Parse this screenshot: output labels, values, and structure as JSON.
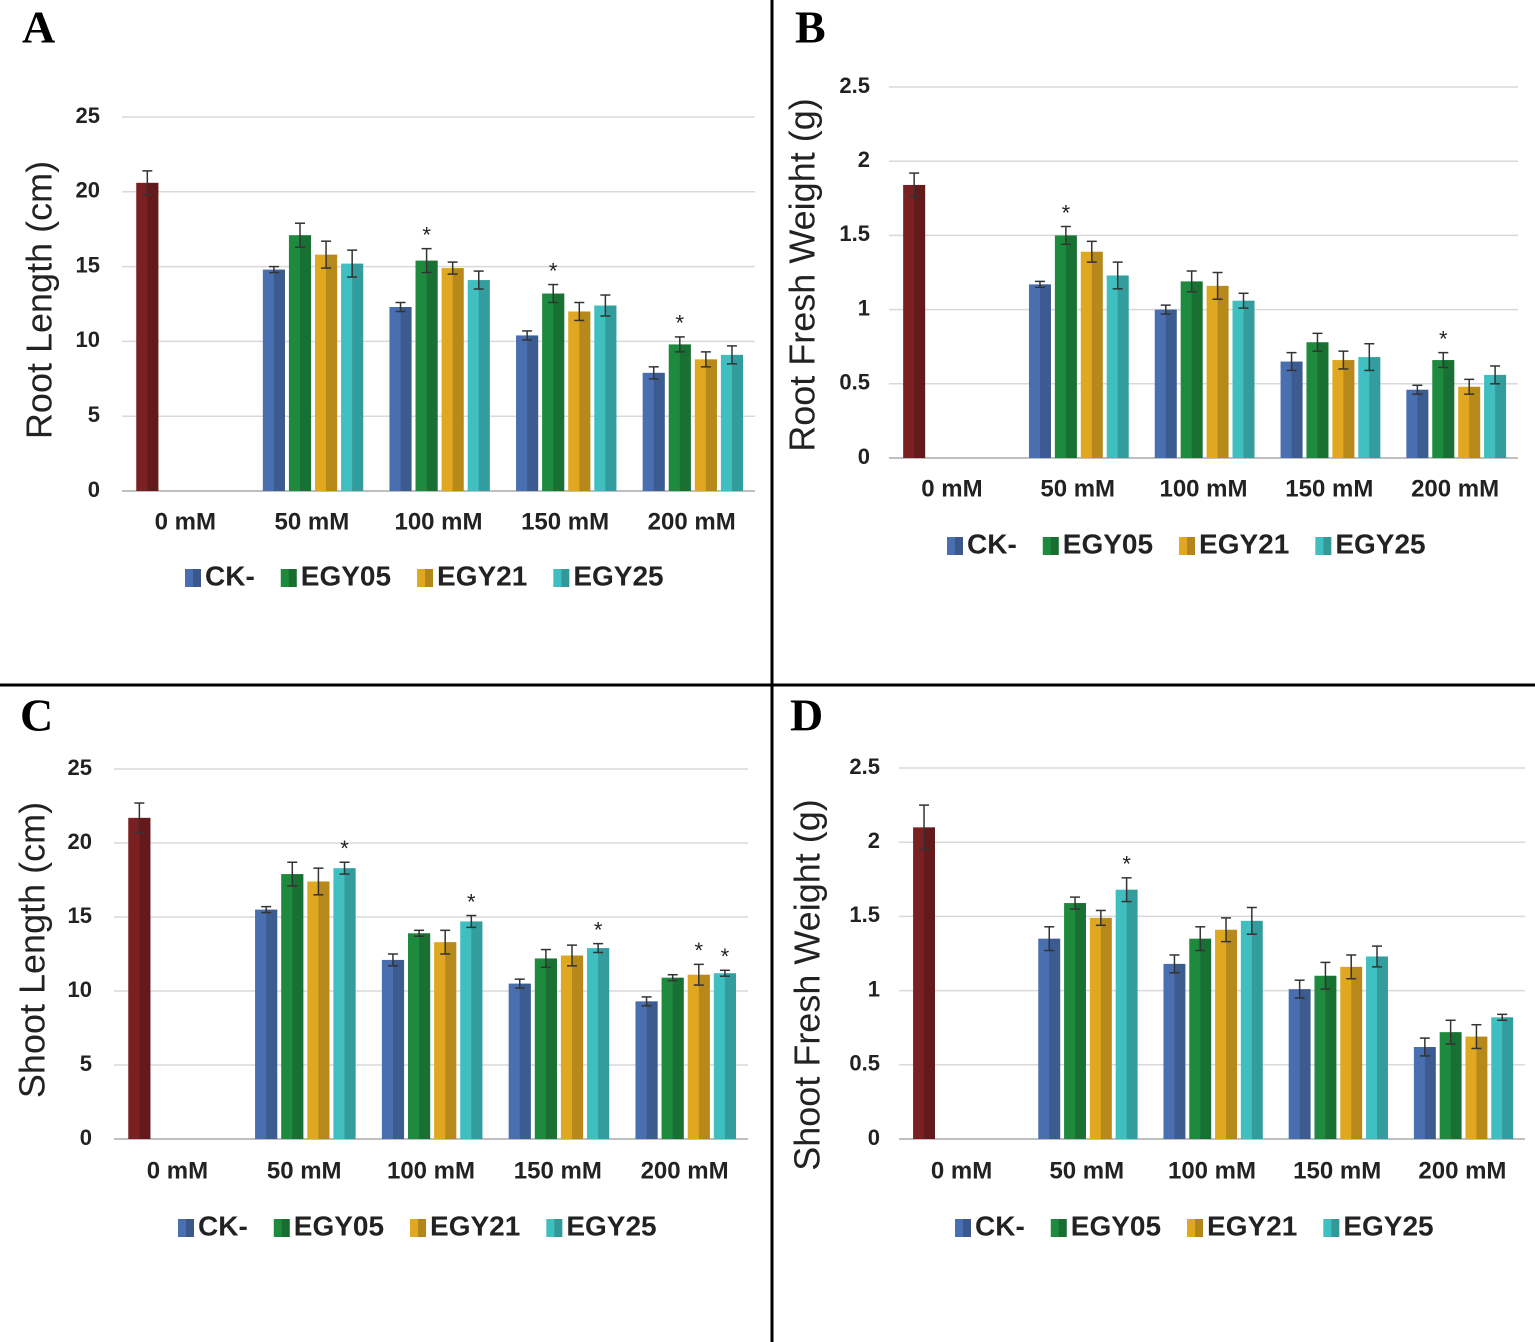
{
  "chart_data": [
    {
      "type": "bar",
      "title": "A",
      "y_label": "Root Length (cm)",
      "categories": [
        "0 mM",
        "50 mM",
        "100 mM",
        "150 mM",
        "200 mM"
      ],
      "ylim": [
        0,
        25
      ],
      "yticks": [
        0,
        5,
        10,
        15,
        20,
        25
      ],
      "grid": true,
      "series": [
        {
          "color": "#7a1f22",
          "values": [
            20.6,
            null,
            null,
            null,
            null
          ],
          "errors": [
            0.8,
            null,
            null,
            null,
            null
          ]
        },
        {
          "name": "CK-",
          "color": "#4a6fb0",
          "values": [
            null,
            14.8,
            12.3,
            10.4,
            7.9
          ],
          "errors": [
            null,
            0.2,
            0.3,
            0.3,
            0.4
          ]
        },
        {
          "name": "EGY05",
          "color": "#1e8a3e",
          "values": [
            null,
            17.1,
            15.4,
            13.2,
            9.8
          ],
          "errors": [
            null,
            0.8,
            0.8,
            0.6,
            0.5
          ],
          "markers": [
            null,
            null,
            "*",
            "*",
            "*"
          ]
        },
        {
          "name": "EGY21",
          "color": "#e0a820",
          "values": [
            null,
            15.8,
            14.9,
            12.0,
            8.8
          ],
          "errors": [
            null,
            0.9,
            0.4,
            0.6,
            0.5
          ]
        },
        {
          "name": "EGY25",
          "color": "#3fbfbf",
          "values": [
            null,
            15.2,
            14.1,
            12.4,
            9.1
          ],
          "errors": [
            null,
            0.9,
            0.6,
            0.7,
            0.6
          ]
        }
      ]
    },
    {
      "type": "bar",
      "title": "B",
      "y_label": "Root Fresh Weight (g)",
      "categories": [
        "0 mM",
        "50 mM",
        "100 mM",
        "150 mM",
        "200 mM"
      ],
      "ylim": [
        0,
        2.5
      ],
      "yticks": [
        0,
        0.5,
        1,
        1.5,
        2,
        2.5
      ],
      "grid": true,
      "series": [
        {
          "color": "#7a1f22",
          "values": [
            1.84,
            null,
            null,
            null,
            null
          ],
          "errors": [
            0.08,
            null,
            null,
            null,
            null
          ]
        },
        {
          "name": "CK-",
          "color": "#4a6fb0",
          "values": [
            null,
            1.17,
            1.0,
            0.65,
            0.46
          ],
          "errors": [
            null,
            0.02,
            0.03,
            0.06,
            0.03
          ]
        },
        {
          "name": "EGY05",
          "color": "#1e8a3e",
          "values": [
            null,
            1.5,
            1.19,
            0.78,
            0.66
          ],
          "errors": [
            null,
            0.06,
            0.07,
            0.06,
            0.05
          ],
          "markers": [
            null,
            "*",
            null,
            null,
            "*"
          ]
        },
        {
          "name": "EGY21",
          "color": "#e0a820",
          "values": [
            null,
            1.39,
            1.16,
            0.66,
            0.48
          ],
          "errors": [
            null,
            0.07,
            0.09,
            0.06,
            0.05
          ]
        },
        {
          "name": "EGY25",
          "color": "#3fbfbf",
          "values": [
            null,
            1.23,
            1.06,
            0.68,
            0.56
          ],
          "errors": [
            null,
            0.09,
            0.05,
            0.09,
            0.06
          ]
        }
      ]
    },
    {
      "type": "bar",
      "title": "C",
      "y_label": "Shoot Length (cm)",
      "categories": [
        "0 mM",
        "50 mM",
        "100 mM",
        "150 mM",
        "200 mM"
      ],
      "ylim": [
        0,
        25
      ],
      "yticks": [
        0,
        5,
        10,
        15,
        20,
        25
      ],
      "grid": true,
      "series": [
        {
          "color": "#7a1f22",
          "values": [
            21.7,
            null,
            null,
            null,
            null
          ],
          "errors": [
            1.0,
            null,
            null,
            null,
            null
          ]
        },
        {
          "name": "CK-",
          "color": "#4a6fb0",
          "values": [
            null,
            15.5,
            12.1,
            10.5,
            9.3
          ],
          "errors": [
            null,
            0.2,
            0.4,
            0.3,
            0.3
          ]
        },
        {
          "name": "EGY05",
          "color": "#1e8a3e",
          "values": [
            null,
            17.9,
            13.9,
            12.2,
            10.9
          ],
          "errors": [
            null,
            0.8,
            0.2,
            0.6,
            0.2
          ]
        },
        {
          "name": "EGY21",
          "color": "#e0a820",
          "values": [
            null,
            17.4,
            13.3,
            12.4,
            11.1
          ],
          "errors": [
            null,
            0.9,
            0.8,
            0.7,
            0.7
          ],
          "markers": [
            null,
            null,
            null,
            null,
            "*"
          ]
        },
        {
          "name": "EGY25",
          "color": "#3fbfbf",
          "values": [
            null,
            18.3,
            14.7,
            12.9,
            11.2
          ],
          "errors": [
            null,
            0.4,
            0.4,
            0.3,
            0.2
          ],
          "markers": [
            null,
            "*",
            "*",
            "*",
            "*"
          ]
        }
      ]
    },
    {
      "type": "bar",
      "title": "D",
      "y_label": "Shoot Fresh Weight (g)",
      "categories": [
        "0 mM",
        "50 mM",
        "100 mM",
        "150 mM",
        "200 mM"
      ],
      "ylim": [
        0,
        2.5
      ],
      "yticks": [
        0,
        0.5,
        1,
        1.5,
        2,
        2.5
      ],
      "grid": true,
      "series": [
        {
          "color": "#7a1f22",
          "values": [
            2.1,
            null,
            null,
            null,
            null
          ],
          "errors": [
            0.15,
            null,
            null,
            null,
            null
          ]
        },
        {
          "name": "CK-",
          "color": "#4a6fb0",
          "values": [
            null,
            1.35,
            1.18,
            1.01,
            0.62
          ],
          "errors": [
            null,
            0.08,
            0.06,
            0.06,
            0.06
          ]
        },
        {
          "name": "EGY05",
          "color": "#1e8a3e",
          "values": [
            null,
            1.59,
            1.35,
            1.1,
            0.72
          ],
          "errors": [
            null,
            0.04,
            0.08,
            0.09,
            0.08
          ]
        },
        {
          "name": "EGY21",
          "color": "#e0a820",
          "values": [
            null,
            1.49,
            1.41,
            1.16,
            0.69
          ],
          "errors": [
            null,
            0.05,
            0.08,
            0.08,
            0.08
          ]
        },
        {
          "name": "EGY25",
          "color": "#3fbfbf",
          "values": [
            null,
            1.68,
            1.47,
            1.23,
            0.82
          ],
          "errors": [
            null,
            0.08,
            0.09,
            0.07,
            0.02
          ],
          "markers": [
            null,
            "*",
            null,
            null,
            null
          ]
        }
      ]
    }
  ]
}
